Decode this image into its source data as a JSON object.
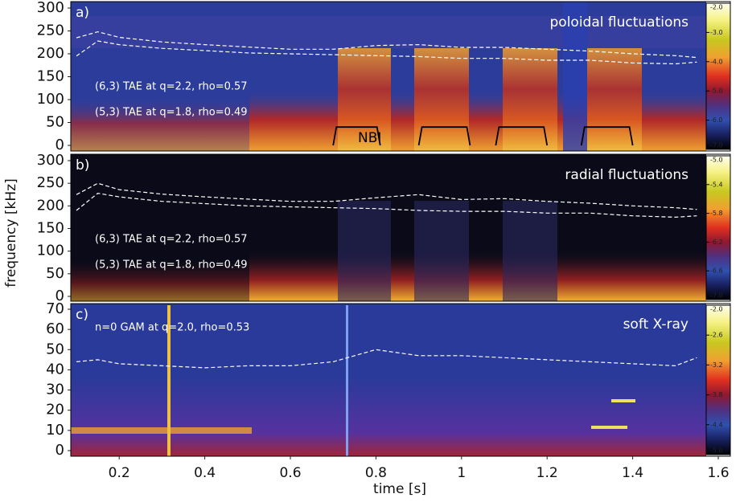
{
  "chart_data": [
    {
      "type": "spectrogram",
      "panel_label": "a)",
      "title": "poloidal fluctuations",
      "annotations": [
        "(6,3) TAE at q=2.2, rho=0.57",
        "(5,3) TAE at q=1.8, rho=0.49",
        "NBI"
      ],
      "xlim": [
        0.1,
        1.6
      ],
      "ylim": [
        0,
        300
      ],
      "yticks": [
        0,
        50,
        100,
        150,
        200,
        250,
        300
      ],
      "x": [
        0.1,
        0.15,
        0.2,
        0.3,
        0.4,
        0.5,
        0.6,
        0.7,
        0.8,
        0.9,
        1.0,
        1.1,
        1.2,
        1.3,
        1.4,
        1.5,
        1.55
      ],
      "series": [
        {
          "color": "#ffffff",
          "values": [
            235,
            248,
            236,
            226,
            220,
            215,
            210,
            210,
            218,
            220,
            214,
            214,
            210,
            206,
            200,
            196,
            192
          ]
        },
        {
          "color": "#ffffff",
          "values": [
            195,
            228,
            220,
            212,
            207,
            202,
            200,
            198,
            196,
            194,
            190,
            190,
            186,
            186,
            180,
            178,
            182
          ]
        }
      ],
      "nbi_pulses": [
        [
          0.7,
          0.81
        ],
        [
          0.9,
          1.02
        ],
        [
          1.08,
          1.2
        ],
        [
          1.28,
          1.4
        ]
      ],
      "nbi_level": 40,
      "clim": [
        -7,
        -2
      ],
      "cticks": [
        {
          "value": -2,
          "label": "-2.0"
        },
        {
          "value": -3,
          "label": "-3.0"
        },
        {
          "value": -4,
          "label": "-4.0"
        },
        {
          "value": -5,
          "label": "-5.0"
        },
        {
          "value": -6,
          "label": "-6.0"
        },
        {
          "value": -7,
          "label": "-7.0"
        }
      ]
    },
    {
      "type": "spectrogram",
      "panel_label": "b)",
      "title": "radial fluctuations",
      "annotations": [
        "(6,3) TAE at q=2.2, rho=0.57",
        "(5,3) TAE at q=1.8, rho=0.49"
      ],
      "ylabel": "frequency [kHz]",
      "xlim": [
        0.1,
        1.6
      ],
      "ylim": [
        0,
        300
      ],
      "yticks": [
        0,
        50,
        100,
        150,
        200,
        250,
        300
      ],
      "x": [
        0.1,
        0.15,
        0.2,
        0.3,
        0.4,
        0.5,
        0.6,
        0.7,
        0.8,
        0.9,
        1.0,
        1.1,
        1.2,
        1.3,
        1.4,
        1.5,
        1.55
      ],
      "series": [
        {
          "color": "#ffffff",
          "values": [
            225,
            250,
            236,
            226,
            220,
            215,
            210,
            210,
            218,
            225,
            214,
            216,
            210,
            206,
            200,
            196,
            192
          ]
        },
        {
          "color": "#ffffff",
          "values": [
            190,
            228,
            220,
            210,
            205,
            200,
            198,
            196,
            194,
            190,
            188,
            188,
            184,
            184,
            178,
            175,
            178
          ]
        }
      ],
      "clim": [
        -7,
        -5
      ],
      "cticks": [
        {
          "value": -5,
          "label": "-5.0"
        },
        {
          "value": -5.4,
          "label": "-5.4"
        },
        {
          "value": -5.8,
          "label": "-5.8"
        },
        {
          "value": -6.2,
          "label": "-6.2"
        },
        {
          "value": -6.6,
          "label": "-6.6"
        },
        {
          "value": -7,
          "label": "-7.0"
        }
      ]
    },
    {
      "type": "spectrogram",
      "panel_label": "c)",
      "title": "soft X-ray",
      "annotations": [
        "n=0 GAM at q=2.0, rho=0.53"
      ],
      "xlabel": "time [s]",
      "xlim": [
        0.1,
        1.6
      ],
      "xticks": [
        0.2,
        0.4,
        0.6,
        0.8,
        1.0,
        1.2,
        1.4,
        1.6
      ],
      "ylim": [
        0,
        70
      ],
      "yticks": [
        0,
        10,
        20,
        30,
        40,
        50,
        60,
        70
      ],
      "x": [
        0.1,
        0.15,
        0.2,
        0.3,
        0.4,
        0.5,
        0.6,
        0.7,
        0.8,
        0.9,
        1.0,
        1.1,
        1.2,
        1.3,
        1.4,
        1.5,
        1.55
      ],
      "series": [
        {
          "color": "#ffffff",
          "values": [
            44,
            45,
            43,
            42,
            41,
            42,
            42,
            44,
            50,
            47,
            47,
            46,
            45,
            44,
            43,
            42,
            46
          ]
        }
      ],
      "clim": [
        -5,
        -2
      ],
      "cticks": [
        {
          "value": -2,
          "label": "-2.0"
        },
        {
          "value": -2.6,
          "label": "-2.6"
        },
        {
          "value": -3.2,
          "label": "-3.2"
        },
        {
          "value": -3.8,
          "label": "-3.8"
        },
        {
          "value": -4.4,
          "label": "-4.4"
        },
        {
          "value": -5,
          "label": "-5.0"
        }
      ]
    }
  ]
}
